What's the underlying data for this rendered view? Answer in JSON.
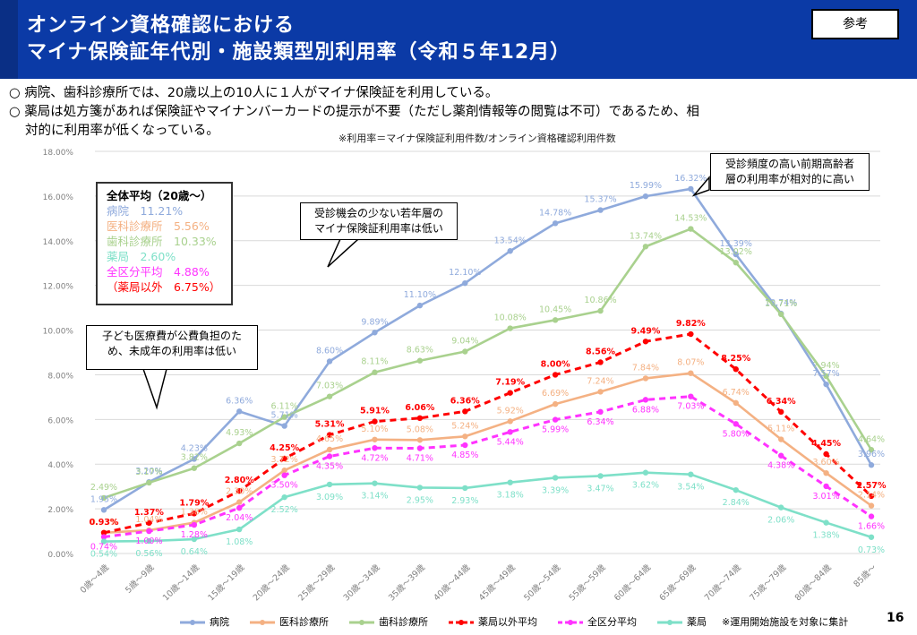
{
  "header": {
    "title_line1": "オンライン資格確認における",
    "title_line2": "マイナ保険証年代別・施設類型別利用率（令和５年12月）",
    "ref_label": "参考"
  },
  "notes": {
    "bullet1": "○ 病院、歯科診療所では、20歳以上の10人に１人がマイナ保険証を利用している。",
    "bullet2": "○ 薬局は処方箋があれば保険証やマイナンバーカードの提示が不要（ただし薬剤情報等の閲覧は不可）であるため、相",
    "bullet2_cont": "対的に利用率が低くなっている。",
    "footnote": "※利用率＝マイナ保険証利用件数/オンライン資格確認利用件数"
  },
  "page_number": "16",
  "callouts": {
    "young": "受診機会の少ない若年層の\nマイナ保険証利用率は低い",
    "elderly": "受診頻度の高い前期高齢者\n層の利用率が相対的に高い",
    "children": "子ども医療費が公費負担のた\nめ、未成年の利用率は低い"
  },
  "average_box": {
    "title": "全体平均（20歳～）",
    "rows": [
      {
        "label": "病院　11.21%",
        "color": "#8faadc"
      },
      {
        "label": "医科診療所　5.56%",
        "color": "#f4b183"
      },
      {
        "label": "歯科診療所　10.33%",
        "color": "#a9d18e"
      },
      {
        "label": "薬局　2.60%",
        "color": "#7ee0c8"
      },
      {
        "label": "全区分平均　4.88%",
        "color": "#ff33ff"
      },
      {
        "label": "（薬局以外　6.75%）",
        "color": "#ff0000"
      }
    ]
  },
  "legend_note": "※運用開始施設を対象に集計",
  "chart_data": {
    "type": "line",
    "categories": [
      "0歳～4歳",
      "5歳～9歳",
      "10歳～14歳",
      "15歳～19歳",
      "20歳～24歳",
      "25歳～29歳",
      "30歳～34歳",
      "35歳～39歳",
      "40歳～44歳",
      "45歳～49歳",
      "50歳～54歳",
      "55歳～59歳",
      "60歳～64歳",
      "65歳～69歳",
      "70歳～74歳",
      "75歳～79歳",
      "80歳～84歳",
      "85歳～"
    ],
    "ylim": [
      0,
      18
    ],
    "y_ticks": [
      "0.00%",
      "2.00%",
      "4.00%",
      "6.00%",
      "8.00%",
      "10.00%",
      "12.00%",
      "14.00%",
      "16.00%",
      "18.00%"
    ],
    "grid": true,
    "legend_placement": "bottom",
    "series": [
      {
        "name": "病院",
        "color": "#8faadc",
        "dash": false,
        "values": [
          1.95,
          3.2,
          4.23,
          6.36,
          5.71,
          8.6,
          9.89,
          11.1,
          12.1,
          13.54,
          14.78,
          15.37,
          15.99,
          16.32,
          13.39,
          10.74,
          7.57,
          3.96
        ],
        "labels": [
          "1.95%",
          "3.20%",
          "4.23%",
          "6.36%",
          "5.71%",
          "8.60%",
          "9.89%",
          "11.10%",
          "12.10%",
          "13.54%",
          "14.78%",
          "15.37%",
          "15.99%",
          "16.32%",
          "13.39%",
          "10.74%",
          "7.57%",
          "3.96%"
        ]
      },
      {
        "name": "医科診療所",
        "color": "#f4b183",
        "dash": false,
        "values": [
          0.93,
          1.04,
          1.38,
          2.3,
          3.72,
          4.65,
          5.1,
          5.08,
          5.24,
          5.92,
          6.69,
          7.24,
          7.84,
          8.07,
          6.74,
          5.11,
          3.6,
          2.14
        ],
        "labels": [
          "0.93%",
          "1.04%",
          "1.38%",
          "2.30%",
          "3.72%",
          "4.65%",
          "5.10%",
          "5.08%",
          "5.24%",
          "5.92%",
          "6.69%",
          "7.24%",
          "7.84%",
          "8.07%",
          "6.74%",
          "5.11%",
          "3.60%",
          "2.14%"
        ]
      },
      {
        "name": "歯科診療所",
        "color": "#a9d18e",
        "dash": false,
        "values": [
          2.49,
          3.17,
          3.82,
          4.93,
          6.11,
          7.03,
          8.11,
          8.63,
          9.04,
          10.08,
          10.45,
          10.86,
          13.74,
          14.53,
          13.02,
          10.71,
          7.94,
          4.64
        ],
        "labels": [
          "2.49%",
          "3.17%",
          "3.82%",
          "4.93%",
          "6.11%",
          "7.03%",
          "8.11%",
          "8.63%",
          "9.04%",
          "10.08%",
          "10.45%",
          "10.86%",
          "13.74%",
          "14.53%",
          "13.02%",
          "10.71%",
          "7.94%",
          "4.64%"
        ]
      },
      {
        "name": "薬局以外平均",
        "color": "#ff0000",
        "dash": true,
        "values": [
          0.93,
          1.37,
          1.79,
          2.8,
          4.25,
          5.31,
          5.91,
          6.06,
          6.36,
          7.19,
          8.0,
          8.56,
          9.49,
          9.82,
          8.25,
          6.34,
          4.45,
          2.57
        ],
        "labels": [
          "0.93%",
          "1.37%",
          "1.79%",
          "2.80%",
          "4.25%",
          "5.31%",
          "5.91%",
          "6.06%",
          "6.36%",
          "7.19%",
          "8.00%",
          "8.56%",
          "9.49%",
          "9.82%",
          "8.25%",
          "6.34%",
          "4.45%",
          "2.57%"
        ]
      },
      {
        "name": "全区分平均",
        "color": "#ff33ff",
        "dash": true,
        "values": [
          0.74,
          1.0,
          1.28,
          2.04,
          3.5,
          4.35,
          4.72,
          4.71,
          4.85,
          5.44,
          5.99,
          6.34,
          6.88,
          7.03,
          5.8,
          4.38,
          3.01,
          1.66
        ],
        "labels": [
          "0.74%",
          "1.00%",
          "1.28%",
          "2.04%",
          "3.50%",
          "4.35%",
          "4.72%",
          "4.71%",
          "4.85%",
          "5.44%",
          "5.99%",
          "6.34%",
          "6.88%",
          "7.03%",
          "5.80%",
          "4.38%",
          "3.01%",
          "1.66%"
        ]
      },
      {
        "name": "薬局",
        "color": "#7ee0c8",
        "dash": false,
        "values": [
          0.54,
          0.56,
          0.64,
          1.08,
          2.52,
          3.09,
          3.14,
          2.95,
          2.93,
          3.18,
          3.39,
          3.47,
          3.62,
          3.54,
          2.84,
          2.06,
          1.38,
          0.73
        ],
        "labels": [
          "0.54%",
          "0.56%",
          "0.64%",
          "1.08%",
          "2.52%",
          "3.09%",
          "3.14%",
          "2.95%",
          "2.93%",
          "3.18%",
          "3.39%",
          "3.47%",
          "3.62%",
          "3.54%",
          "2.84%",
          "2.06%",
          "1.38%",
          "0.73%"
        ]
      }
    ]
  }
}
